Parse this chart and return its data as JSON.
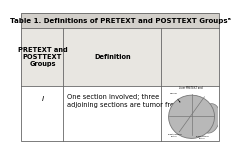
{
  "title": "Table 1. Definitions of PRETEXT and POSTTEXT Groupsᵃ",
  "col1_header": "PRETEXT and\nPOSTTEXT\nGroups",
  "col2_header": "Definition",
  "row1_col1": "I",
  "row1_col2": "One section involved; three\nadjoining sections are tumor free.",
  "bg_title": "#d3d0cb",
  "bg_header": "#e8e6e1",
  "bg_body": "#ffffff",
  "border_color": "#666666",
  "title_fontsize": 5.0,
  "header_fontsize": 4.8,
  "body_fontsize": 4.8,
  "fig_width": 2.04,
  "fig_height": 1.34
}
